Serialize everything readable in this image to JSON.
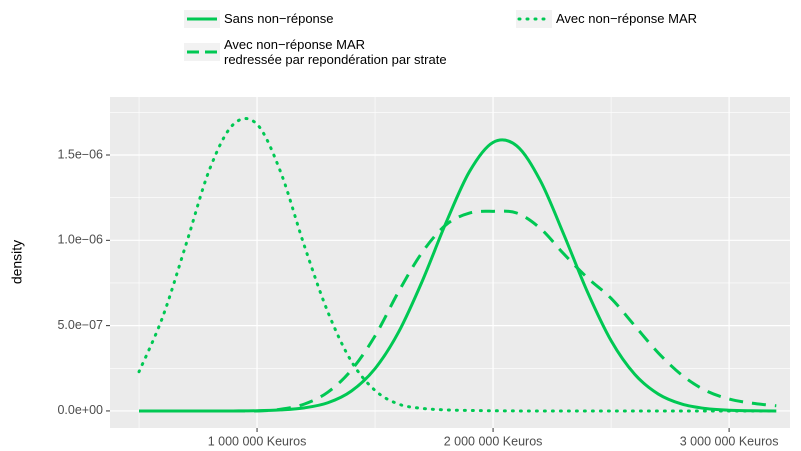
{
  "chart_data": {
    "type": "line",
    "y_label": "density",
    "x": [
      500000,
      600000,
      700000,
      800000,
      900000,
      1000000,
      1100000,
      1200000,
      1300000,
      1400000,
      1500000,
      1600000,
      1700000,
      1800000,
      1900000,
      2000000,
      2100000,
      2200000,
      2300000,
      2400000,
      2500000,
      2600000,
      2700000,
      2800000,
      2900000,
      3000000,
      3100000,
      3200000
    ],
    "series": [
      {
        "name": "Sans non−réponse",
        "color": "#00c853",
        "dash": "solid",
        "values": [
          0,
          0,
          0,
          0,
          0,
          1e-09,
          6e-09,
          1.8e-08,
          4.8e-08,
          1.17e-07,
          2.48e-07,
          4.63e-07,
          7.61e-07,
          1.101e-06,
          1.403e-06,
          1.574e-06,
          1.554e-06,
          1.35e-06,
          1.033e-06,
          6.97e-07,
          4.12e-07,
          2.15e-07,
          9.9e-08,
          4e-08,
          1.4e-08,
          4e-09,
          1e-09,
          0
        ]
      },
      {
        "name": "Avec non−réponse MAR",
        "color": "#00c853",
        "dash": "dotted",
        "values": [
          2.3e-07,
          5.5e-07,
          9.8e-07,
          1.42e-06,
          1.68e-06,
          1.68e-06,
          1.4e-06,
          9.7e-07,
          5.8e-07,
          2.9e-07,
          1.2e-07,
          4e-08,
          1.5e-08,
          6e-09,
          3e-09,
          1e-09,
          0,
          0,
          0,
          0,
          0,
          0,
          0,
          0,
          0,
          0,
          0,
          0
        ]
      },
      {
        "name": "Avec non−réponse MAR\nredressée par repondération par strate",
        "color": "#00c853",
        "dash": "dashed",
        "values": [
          0,
          0,
          0,
          0,
          0,
          0,
          1e-08,
          4e-08,
          1.1e-07,
          2.4e-07,
          4.4e-07,
          7e-07,
          9.3e-07,
          1.09e-06,
          1.16e-06,
          1.17e-06,
          1.16e-06,
          1.07e-06,
          9.2e-07,
          7.8e-07,
          6.6e-07,
          5e-07,
          3.4e-07,
          2.1e-07,
          1.2e-07,
          7e-08,
          4.5e-08,
          3e-08
        ]
      }
    ],
    "xlim": [
      377000,
      3258000
    ],
    "xticks": [
      {
        "value": 1000000,
        "label": "1 000 000 Keuros"
      },
      {
        "value": 2000000,
        "label": "2 000 000 Keuros"
      },
      {
        "value": 3000000,
        "label": "3 000 000 Keuros"
      }
    ],
    "ylim": [
      -1e-07,
      1.84e-06
    ],
    "yticks": [
      {
        "value": 0,
        "label": "0.0e+00"
      },
      {
        "value": 5e-07,
        "label": "5.0e−07"
      },
      {
        "value": 1e-06,
        "label": "1.0e−06"
      },
      {
        "value": 1.5e-06,
        "label": "1.5e−06"
      }
    ],
    "grid": true,
    "legend_position": "top"
  }
}
